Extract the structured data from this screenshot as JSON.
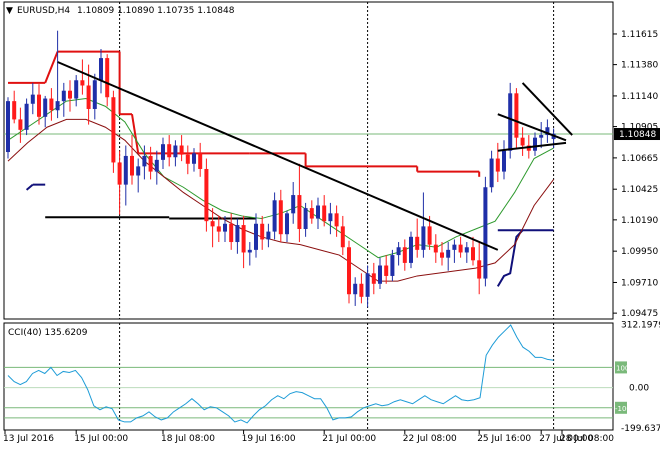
{
  "chart_data": [
    {
      "type": "candlestick",
      "symbol_label": "EURUSD,H4",
      "ohlc_label": "1.10809 1.10890 1.10735 1.10848",
      "current_price": 1.10848,
      "current_price_label": "1.10848",
      "ylim": [
        1.0943,
        1.1186
      ],
      "y_ticks": [
        "1.11615",
        "1.11380",
        "1.11140",
        "1.10905",
        "1.10665",
        "1.10425",
        "1.10190",
        "1.09950",
        "1.09710",
        "1.09475"
      ],
      "x_ticks": [
        "13 Jul 2016",
        "15 Jul 00:00",
        "18 Jul 08:00",
        "19 Jul 16:00",
        "21 Jul 00:00",
        "22 Jul 08:00",
        "25 Jul 16:00",
        "27 Jul 00:00",
        "28 Jul 08:00"
      ],
      "colors": {
        "bull": "#1f2fa8",
        "bear": "#ff1a1a",
        "ma_fast": "#2e9a2e",
        "ma_slow": "#8b1010",
        "level": "#e01010",
        "support": "#10107a",
        "trendline": "#000000",
        "hline": "#7ab97a"
      },
      "candles": [
        [
          1.1071,
          1.1113,
          1.1066,
          1.111
        ],
        [
          1.111,
          1.1118,
          1.1093,
          1.1096
        ],
        [
          1.1096,
          1.1105,
          1.1078,
          1.1088
        ],
        [
          1.1088,
          1.1112,
          1.1084,
          1.1108
        ],
        [
          1.1108,
          1.1124,
          1.11,
          1.1115
        ],
        [
          1.1115,
          1.1123,
          1.1092,
          1.1098
        ],
        [
          1.1098,
          1.1114,
          1.109,
          1.1112
        ],
        [
          1.1112,
          1.112,
          1.1095,
          1.1103
        ],
        [
          1.1103,
          1.1164,
          1.1097,
          1.111
        ],
        [
          1.111,
          1.1124,
          1.1098,
          1.1118
        ],
        [
          1.1118,
          1.1126,
          1.1102,
          1.1112
        ],
        [
          1.1112,
          1.113,
          1.1106,
          1.1126
        ],
        [
          1.1126,
          1.1142,
          1.1115,
          1.1122
        ],
        [
          1.1122,
          1.1138,
          1.1092,
          1.1104
        ],
        [
          1.1104,
          1.1131,
          1.1096,
          1.1126
        ],
        [
          1.1126,
          1.115,
          1.1116,
          1.1143
        ],
        [
          1.1143,
          1.1146,
          1.1106,
          1.1113
        ],
        [
          1.1113,
          1.1118,
          1.1055,
          1.1063
        ],
        [
          1.1063,
          1.1072,
          1.1023,
          1.1046
        ],
        [
          1.1046,
          1.1076,
          1.103,
          1.1068
        ],
        [
          1.1068,
          1.1084,
          1.1046,
          1.1053
        ],
        [
          1.1053,
          1.1066,
          1.104,
          1.106
        ],
        [
          1.106,
          1.1076,
          1.105,
          1.1068
        ],
        [
          1.1068,
          1.1075,
          1.105,
          1.1056
        ],
        [
          1.1056,
          1.1072,
          1.1046,
          1.1065
        ],
        [
          1.1065,
          1.1082,
          1.1058,
          1.1077
        ],
        [
          1.1077,
          1.1084,
          1.106,
          1.1067
        ],
        [
          1.1067,
          1.108,
          1.106,
          1.1076
        ],
        [
          1.1076,
          1.1084,
          1.1064,
          1.1069
        ],
        [
          1.1069,
          1.1076,
          1.1054,
          1.1062
        ],
        [
          1.1062,
          1.1074,
          1.1056,
          1.107
        ],
        [
          1.107,
          1.1078,
          1.1052,
          1.1058
        ],
        [
          1.1058,
          1.1066,
          1.101,
          1.1018
        ],
        [
          1.1018,
          1.1028,
          1.0998,
          1.1014
        ],
        [
          1.1014,
          1.1022,
          1.1002,
          1.101
        ],
        [
          1.101,
          1.1022,
          1.1002,
          1.1016
        ],
        [
          1.1016,
          1.1024,
          1.0996,
          1.1002
        ],
        [
          1.1002,
          1.102,
          1.0993,
          1.1015
        ],
        [
          1.1015,
          1.1022,
          1.0982,
          1.0994
        ],
        [
          1.0994,
          1.1002,
          1.0984,
          1.0996
        ],
        [
          1.0996,
          1.1024,
          1.099,
          1.1016
        ],
        [
          1.1016,
          1.1022,
          1.0996,
          1.1004
        ],
        [
          1.1004,
          1.1016,
          1.0998,
          1.101
        ],
        [
          1.101,
          1.104,
          1.1004,
          1.1034
        ],
        [
          1.1034,
          1.1042,
          1.1002,
          1.1008
        ],
        [
          1.1008,
          1.1026,
          1.1002,
          1.1024
        ],
        [
          1.1024,
          1.1048,
          1.1016,
          1.1038
        ],
        [
          1.1038,
          1.1062,
          1.1002,
          1.1012
        ],
        [
          1.1012,
          1.1032,
          1.1006,
          1.1028
        ],
        [
          1.1028,
          1.1034,
          1.1016,
          1.102
        ],
        [
          1.102,
          1.1036,
          1.1012,
          1.103
        ],
        [
          1.103,
          1.1038,
          1.1014,
          1.1018
        ],
        [
          1.1018,
          1.1032,
          1.1008,
          1.1024
        ],
        [
          1.1024,
          1.103,
          1.1006,
          1.1014
        ],
        [
          1.1014,
          1.1022,
          1.0992,
          1.0998
        ],
        [
          1.0998,
          1.1003,
          1.0955,
          1.0962
        ],
        [
          1.0962,
          1.0975,
          1.0953,
          1.097
        ],
        [
          1.097,
          1.0978,
          1.0955,
          1.096
        ],
        [
          1.096,
          1.0984,
          1.0952,
          1.0978
        ],
        [
          1.0978,
          1.0986,
          1.0962,
          1.097
        ],
        [
          1.097,
          1.099,
          1.0966,
          1.0984
        ],
        [
          1.0984,
          1.0992,
          1.097,
          1.0976
        ],
        [
          1.0976,
          1.0996,
          1.0972,
          1.0992
        ],
        [
          1.0992,
          1.1002,
          1.0984,
          1.0998
        ],
        [
          1.0998,
          1.1004,
          1.098,
          1.0986
        ],
        [
          1.0986,
          1.101,
          1.0982,
          1.1006
        ],
        [
          1.1006,
          1.102,
          1.099,
          1.0996
        ],
        [
          1.0996,
          1.104,
          1.099,
          1.1014
        ],
        [
          1.1014,
          1.1022,
          1.0996,
          1.1
        ],
        [
          1.1,
          1.1008,
          1.0986,
          1.0994
        ],
        [
          1.0994,
          1.1002,
          1.0984,
          1.099
        ],
        [
          1.099,
          1.1002,
          1.098,
          1.0996
        ],
        [
          1.0996,
          1.1004,
          1.0986,
          1.1
        ],
        [
          1.1,
          1.1006,
          1.099,
          1.0994
        ],
        [
          1.0994,
          1.1002,
          1.0986,
          1.0998
        ],
        [
          1.0998,
          1.1006,
          1.0984,
          1.0988
        ],
        [
          1.0988,
          1.1002,
          1.0962,
          1.0974
        ],
        [
          1.0974,
          1.1052,
          1.0968,
          1.1044
        ],
        [
          1.1044,
          1.1072,
          1.104,
          1.1066
        ],
        [
          1.1066,
          1.1078,
          1.1048,
          1.1056
        ],
        [
          1.1056,
          1.108,
          1.105,
          1.1072
        ],
        [
          1.1072,
          1.1124,
          1.1066,
          1.1116
        ],
        [
          1.1116,
          1.112,
          1.1074,
          1.1082
        ],
        [
          1.1082,
          1.109,
          1.1068,
          1.1076
        ],
        [
          1.1076,
          1.1084,
          1.1066,
          1.1072
        ],
        [
          1.1072,
          1.1086,
          1.1068,
          1.1082
        ],
        [
          1.1082,
          1.1094,
          1.1074,
          1.1084
        ],
        [
          1.1084,
          1.1096,
          1.1078,
          1.109
        ],
        [
          1.1081,
          1.1089,
          1.1074,
          1.1085
        ]
      ],
      "ma_fast": [
        1.108,
        1.109,
        1.11,
        1.111,
        1.1112,
        1.1106,
        1.1094,
        1.107,
        1.1052,
        1.1044,
        1.1034,
        1.1026,
        1.1022,
        1.102,
        1.1024,
        1.103,
        1.102,
        1.101,
        1.1,
        1.099,
        1.0994,
        1.1,
        1.0998,
        1.1006,
        1.1012,
        1.1018,
        1.104,
        1.1066,
        1.1074
      ],
      "ma_slow": [
        1.1064,
        1.1078,
        1.109,
        1.1096,
        1.1096,
        1.109,
        1.108,
        1.1064,
        1.1052,
        1.104,
        1.103,
        1.102,
        1.1012,
        1.1006,
        1.1002,
        1.1,
        1.0996,
        1.0992,
        1.0982,
        1.0972,
        1.0972,
        1.0976,
        1.0978,
        1.098,
        1.0982,
        1.0986,
        1.1,
        1.103,
        1.105
      ],
      "resistance_steps": [
        [
          0,
          6,
          1.1124
        ],
        [
          8,
          18,
          1.1148
        ],
        [
          18,
          20,
          1.11
        ],
        [
          21,
          39,
          1.107
        ],
        [
          39,
          48,
          1.107
        ],
        [
          48,
          66,
          1.106
        ],
        [
          66,
          76,
          1.1056
        ]
      ],
      "support_segments": [
        [
          4,
          6,
          1.1046
        ],
        [
          6,
          26,
          1.1021
        ],
        [
          26,
          40,
          1.102
        ],
        [
          79,
          88,
          1.1011
        ]
      ],
      "trendlines": [
        [
          8,
          1.114,
          79,
          1.0996
        ],
        [
          79,
          1.11,
          90,
          1.108
        ],
        [
          83,
          1.1124,
          91,
          1.1084
        ],
        [
          79,
          1.1072,
          90,
          1.1078
        ]
      ],
      "hlines": [
        1.10848
      ]
    },
    {
      "type": "line",
      "indicator_label": "CCI(40) 135.6209",
      "ylim": [
        -210,
        320
      ],
      "y_ticks": [
        "312.1979",
        "0.00",
        "-199.6379"
      ],
      "levels": [
        100,
        0,
        -100,
        -150
      ],
      "level_labels": [
        "100",
        "-100"
      ],
      "values": [
        60,
        30,
        15,
        30,
        70,
        85,
        70,
        100,
        60,
        80,
        75,
        85,
        50,
        -10,
        -90,
        -110,
        -95,
        -105,
        -160,
        -170,
        -170,
        -150,
        -140,
        -120,
        -145,
        -160,
        -150,
        -120,
        -100,
        -80,
        -55,
        -80,
        -110,
        -95,
        -100,
        -120,
        -140,
        -170,
        -160,
        -175,
        -140,
        -110,
        -90,
        -60,
        -40,
        -55,
        -30,
        -20,
        -25,
        -40,
        -55,
        -55,
        -100,
        -160,
        -150,
        -150,
        -145,
        -120,
        -100,
        -90,
        -80,
        -90,
        -85,
        -70,
        -60,
        -70,
        -80,
        -60,
        -40,
        -60,
        -70,
        -80,
        -60,
        -40,
        -60,
        -65,
        -60,
        -50,
        160,
        210,
        250,
        280,
        310,
        250,
        200,
        180,
        150,
        150,
        140,
        135.6
      ]
    }
  ]
}
